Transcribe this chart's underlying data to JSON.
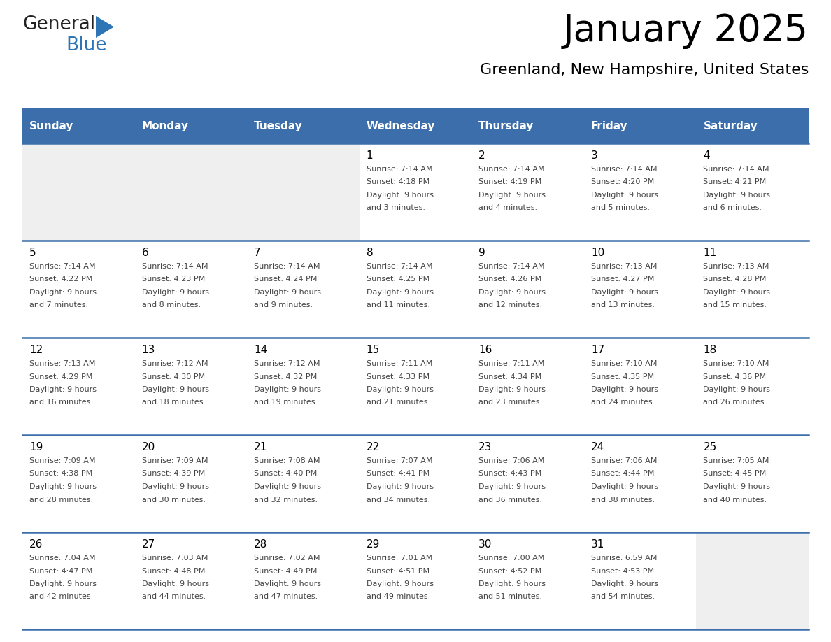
{
  "title": "January 2025",
  "subtitle": "Greenland, New Hampshire, United States",
  "days_of_week": [
    "Sunday",
    "Monday",
    "Tuesday",
    "Wednesday",
    "Thursday",
    "Friday",
    "Saturday"
  ],
  "header_bg": "#3B6EAA",
  "header_text": "#FFFFFF",
  "row_bg_light": "#FFFFFF",
  "row_bg_gray": "#EFEFEF",
  "cell_text_color": "#444444",
  "day_num_color": "#000000",
  "separator_color": "#3B6EAA",
  "title_color": "#000000",
  "subtitle_color": "#000000",
  "logo_general_color": "#222222",
  "logo_blue_color": "#2E75B6",
  "logo_triangle_color": "#2E75B6",
  "weeks": [
    {
      "days": [
        {
          "date": "",
          "sunrise": "",
          "sunset": "",
          "daylight": ""
        },
        {
          "date": "",
          "sunrise": "",
          "sunset": "",
          "daylight": ""
        },
        {
          "date": "",
          "sunrise": "",
          "sunset": "",
          "daylight": ""
        },
        {
          "date": "1",
          "sunrise": "7:14 AM",
          "sunset": "4:18 PM",
          "daylight": "9 hours and 3 minutes."
        },
        {
          "date": "2",
          "sunrise": "7:14 AM",
          "sunset": "4:19 PM",
          "daylight": "9 hours and 4 minutes."
        },
        {
          "date": "3",
          "sunrise": "7:14 AM",
          "sunset": "4:20 PM",
          "daylight": "9 hours and 5 minutes."
        },
        {
          "date": "4",
          "sunrise": "7:14 AM",
          "sunset": "4:21 PM",
          "daylight": "9 hours and 6 minutes."
        }
      ]
    },
    {
      "days": [
        {
          "date": "5",
          "sunrise": "7:14 AM",
          "sunset": "4:22 PM",
          "daylight": "9 hours and 7 minutes."
        },
        {
          "date": "6",
          "sunrise": "7:14 AM",
          "sunset": "4:23 PM",
          "daylight": "9 hours and 8 minutes."
        },
        {
          "date": "7",
          "sunrise": "7:14 AM",
          "sunset": "4:24 PM",
          "daylight": "9 hours and 9 minutes."
        },
        {
          "date": "8",
          "sunrise": "7:14 AM",
          "sunset": "4:25 PM",
          "daylight": "9 hours and 11 minutes."
        },
        {
          "date": "9",
          "sunrise": "7:14 AM",
          "sunset": "4:26 PM",
          "daylight": "9 hours and 12 minutes."
        },
        {
          "date": "10",
          "sunrise": "7:13 AM",
          "sunset": "4:27 PM",
          "daylight": "9 hours and 13 minutes."
        },
        {
          "date": "11",
          "sunrise": "7:13 AM",
          "sunset": "4:28 PM",
          "daylight": "9 hours and 15 minutes."
        }
      ]
    },
    {
      "days": [
        {
          "date": "12",
          "sunrise": "7:13 AM",
          "sunset": "4:29 PM",
          "daylight": "9 hours and 16 minutes."
        },
        {
          "date": "13",
          "sunrise": "7:12 AM",
          "sunset": "4:30 PM",
          "daylight": "9 hours and 18 minutes."
        },
        {
          "date": "14",
          "sunrise": "7:12 AM",
          "sunset": "4:32 PM",
          "daylight": "9 hours and 19 minutes."
        },
        {
          "date": "15",
          "sunrise": "7:11 AM",
          "sunset": "4:33 PM",
          "daylight": "9 hours and 21 minutes."
        },
        {
          "date": "16",
          "sunrise": "7:11 AM",
          "sunset": "4:34 PM",
          "daylight": "9 hours and 23 minutes."
        },
        {
          "date": "17",
          "sunrise": "7:10 AM",
          "sunset": "4:35 PM",
          "daylight": "9 hours and 24 minutes."
        },
        {
          "date": "18",
          "sunrise": "7:10 AM",
          "sunset": "4:36 PM",
          "daylight": "9 hours and 26 minutes."
        }
      ]
    },
    {
      "days": [
        {
          "date": "19",
          "sunrise": "7:09 AM",
          "sunset": "4:38 PM",
          "daylight": "9 hours and 28 minutes."
        },
        {
          "date": "20",
          "sunrise": "7:09 AM",
          "sunset": "4:39 PM",
          "daylight": "9 hours and 30 minutes."
        },
        {
          "date": "21",
          "sunrise": "7:08 AM",
          "sunset": "4:40 PM",
          "daylight": "9 hours and 32 minutes."
        },
        {
          "date": "22",
          "sunrise": "7:07 AM",
          "sunset": "4:41 PM",
          "daylight": "9 hours and 34 minutes."
        },
        {
          "date": "23",
          "sunrise": "7:06 AM",
          "sunset": "4:43 PM",
          "daylight": "9 hours and 36 minutes."
        },
        {
          "date": "24",
          "sunrise": "7:06 AM",
          "sunset": "4:44 PM",
          "daylight": "9 hours and 38 minutes."
        },
        {
          "date": "25",
          "sunrise": "7:05 AM",
          "sunset": "4:45 PM",
          "daylight": "9 hours and 40 minutes."
        }
      ]
    },
    {
      "days": [
        {
          "date": "26",
          "sunrise": "7:04 AM",
          "sunset": "4:47 PM",
          "daylight": "9 hours and 42 minutes."
        },
        {
          "date": "27",
          "sunrise": "7:03 AM",
          "sunset": "4:48 PM",
          "daylight": "9 hours and 44 minutes."
        },
        {
          "date": "28",
          "sunrise": "7:02 AM",
          "sunset": "4:49 PM",
          "daylight": "9 hours and 47 minutes."
        },
        {
          "date": "29",
          "sunrise": "7:01 AM",
          "sunset": "4:51 PM",
          "daylight": "9 hours and 49 minutes."
        },
        {
          "date": "30",
          "sunrise": "7:00 AM",
          "sunset": "4:52 PM",
          "daylight": "9 hours and 51 minutes."
        },
        {
          "date": "31",
          "sunrise": "6:59 AM",
          "sunset": "4:53 PM",
          "daylight": "9 hours and 54 minutes."
        },
        {
          "date": "",
          "sunrise": "",
          "sunset": "",
          "daylight": ""
        }
      ]
    }
  ]
}
